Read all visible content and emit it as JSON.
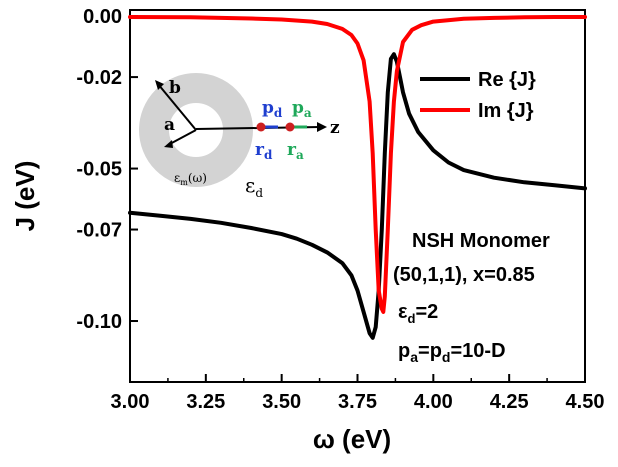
{
  "chart_data": {
    "type": "line",
    "title": "",
    "xlabel": "ω (eV)",
    "ylabel": "J (eV)",
    "xlim": [
      3.0,
      4.5
    ],
    "ylim": [
      -0.12,
      0.002
    ],
    "xticks": [
      "3.00",
      "3.25",
      "3.50",
      "3.75",
      "4.00",
      "4.25",
      "4.50"
    ],
    "yticks": [
      "0.00",
      "-0.02",
      "-0.05",
      "-0.07",
      "-0.10"
    ],
    "ytick_values": [
      0.0,
      -0.02,
      -0.05,
      -0.07,
      -0.1
    ],
    "legend_position": "top-right",
    "series": [
      {
        "name": "Re {J}",
        "color": "#000000",
        "x": [
          3.0,
          3.1,
          3.2,
          3.3,
          3.4,
          3.5,
          3.55,
          3.6,
          3.65,
          3.7,
          3.73,
          3.75,
          3.77,
          3.79,
          3.8,
          3.81,
          3.82,
          3.83,
          3.84,
          3.85,
          3.86,
          3.87,
          3.88,
          3.89,
          3.9,
          3.92,
          3.95,
          4.0,
          4.05,
          4.1,
          4.2,
          4.3,
          4.4,
          4.5
        ],
        "y": [
          -0.0645,
          -0.0655,
          -0.0665,
          -0.0678,
          -0.0695,
          -0.0715,
          -0.073,
          -0.075,
          -0.0775,
          -0.081,
          -0.085,
          -0.09,
          -0.097,
          -0.104,
          -0.1055,
          -0.102,
          -0.09,
          -0.07,
          -0.045,
          -0.025,
          -0.014,
          -0.0125,
          -0.015,
          -0.02,
          -0.025,
          -0.032,
          -0.038,
          -0.044,
          -0.048,
          -0.0505,
          -0.053,
          -0.0545,
          -0.0555,
          -0.0565
        ]
      },
      {
        "name": "Im {J}",
        "color": "#ff0000",
        "x": [
          3.0,
          3.2,
          3.4,
          3.5,
          3.6,
          3.65,
          3.7,
          3.73,
          3.75,
          3.77,
          3.79,
          3.8,
          3.81,
          3.82,
          3.83,
          3.835,
          3.84,
          3.85,
          3.86,
          3.87,
          3.88,
          3.9,
          3.93,
          3.96,
          4.0,
          4.1,
          4.2,
          4.3,
          4.4,
          4.5
        ],
        "y": [
          -0.0003,
          -0.0004,
          -0.0008,
          -0.0011,
          -0.0018,
          -0.0026,
          -0.0042,
          -0.0062,
          -0.009,
          -0.0145,
          -0.028,
          -0.045,
          -0.07,
          -0.09,
          -0.096,
          -0.097,
          -0.092,
          -0.07,
          -0.045,
          -0.028,
          -0.018,
          -0.0085,
          -0.0045,
          -0.003,
          -0.0018,
          -0.0009,
          -0.0006,
          -0.0004,
          -0.0003,
          -0.0003
        ]
      }
    ],
    "annotations": [
      "NSH Monomer",
      "(50,1,1), x=0.85",
      "εd=2",
      "pa=pd=10-D"
    ]
  },
  "annotations": {
    "line1": "NSH Monomer",
    "line2": "(50,1,1), x=0.85",
    "line3_sym": "ε",
    "line3_sub": "d",
    "line3_rest": "=2",
    "line4_p1": "p",
    "line4_sub1": "a",
    "line4_mid": "=p",
    "line4_sub2": "d",
    "line4_rest": "=10-D"
  },
  "inset": {
    "label_b": "b",
    "label_a": "a",
    "label_z": "z",
    "label_pd": "p",
    "label_pd_sub": "d",
    "label_pa": "p",
    "label_pa_sub": "a",
    "label_rd": "r",
    "label_rd_sub": "d",
    "label_ra": "r",
    "label_ra_sub": "a",
    "label_em": "ε",
    "label_em_sub": "m",
    "label_em_rest": "(ω)",
    "label_ed": "ε",
    "label_ed_sub": "d",
    "colors": {
      "shell": "#d3d3d3",
      "pd": "#1f3fcf",
      "pa": "#1fa85a",
      "dot": "#cc2020"
    }
  }
}
